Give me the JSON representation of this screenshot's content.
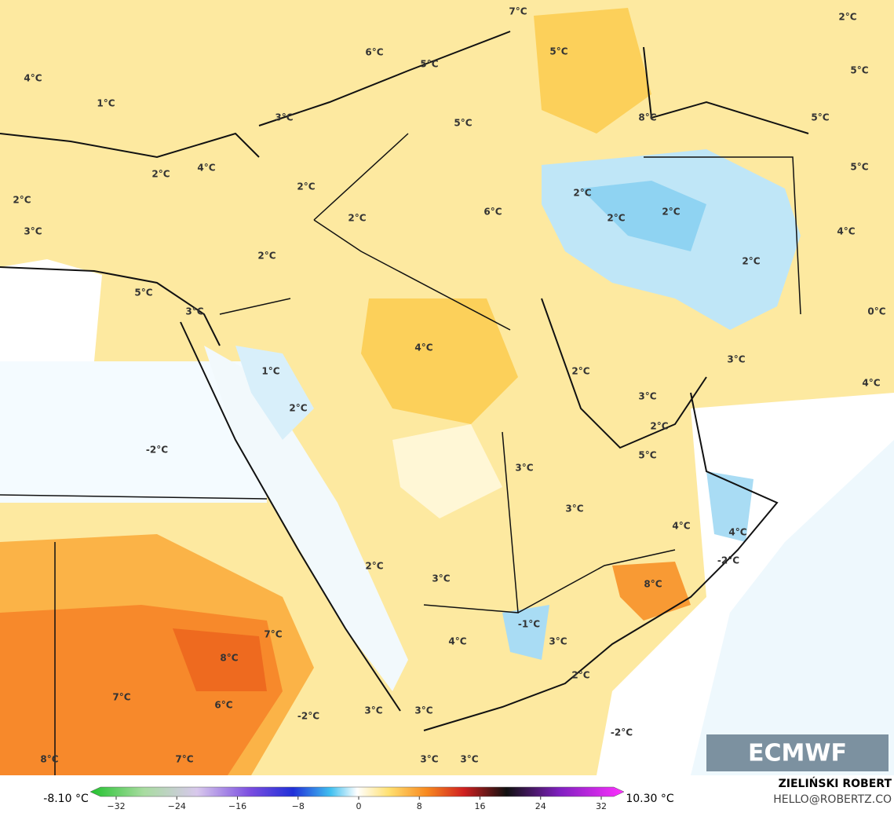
{
  "map_labels": [
    "7°C",
    "2°C",
    "6°C",
    "5°C",
    "5°C",
    "4°C",
    "5°C",
    "1°C",
    "3°C",
    "5°C",
    "8°C",
    "5°C",
    "2°C",
    "4°C",
    "5°C",
    "2°C",
    "2°C",
    "2°C",
    "2°C",
    "6°C",
    "2°C",
    "2°C",
    "3°C",
    "4°C",
    "2°C",
    "2°C",
    "5°C",
    "3°C",
    "0°C",
    "4°C",
    "3°C",
    "1°C",
    "2°C",
    "4°C",
    "2°C",
    "3°C",
    "2°C",
    "-2°C",
    "5°C",
    "3°C",
    "3°C",
    "4°C",
    "4°C",
    "-2°C",
    "2°C",
    "3°C",
    "8°C",
    "-1°C",
    "7°C",
    "4°C",
    "3°C",
    "8°C",
    "2°C",
    "7°C",
    "6°C",
    "3°C",
    "-2°C",
    "3°C",
    "-2°C",
    "8°C",
    "7°C",
    "3°C",
    "3°C"
  ],
  "colorbar": {
    "min_label": "-8.10 °C",
    "max_label": "10.30 °C",
    "ticks": [
      {
        "value": -32,
        "label": "−32"
      },
      {
        "value": -24,
        "label": "−24"
      },
      {
        "value": -16,
        "label": "−16"
      },
      {
        "value": -8,
        "label": "−8"
      },
      0,
      8,
      16,
      24,
      32
    ]
  },
  "logo": "ECMWF",
  "credits": {
    "name": "ZIELIŃSKI ROBERT",
    "contact": "HELLO@ROBERTZ.CO"
  }
}
